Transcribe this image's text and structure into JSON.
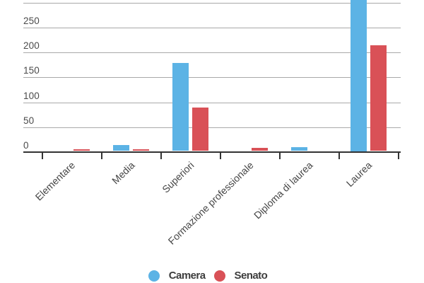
{
  "chart_data": {
    "type": "bar",
    "categories": [
      "Elementare",
      "Media",
      "Superiori",
      "Formazione professionale",
      "Diploma di laurea",
      "Laurea"
    ],
    "series": [
      {
        "name": "Camera",
        "color": "#5CB3E5",
        "values": [
          0,
          14,
          179,
          0,
          10,
          430
        ]
      },
      {
        "name": "Senato",
        "color": "#D95157",
        "values": [
          5,
          6,
          90,
          8,
          0,
          214
        ]
      }
    ],
    "title": "",
    "xlabel": "",
    "ylabel": "",
    "ylim": [
      0,
      300
    ],
    "y_ticks": [
      0,
      50,
      100,
      150,
      200,
      250
    ],
    "grid": true,
    "legend_position": "bottom",
    "clipped": "Camera Laurea bar exceeds the visible top edge of the image (value estimated)"
  },
  "colors": {
    "background": "#ffffff",
    "grid": "#a9a9a9",
    "axis": "#333333",
    "tick_label": "#4b4b4b",
    "x_label": "#454545",
    "legend_label": "#3d3d3d"
  }
}
